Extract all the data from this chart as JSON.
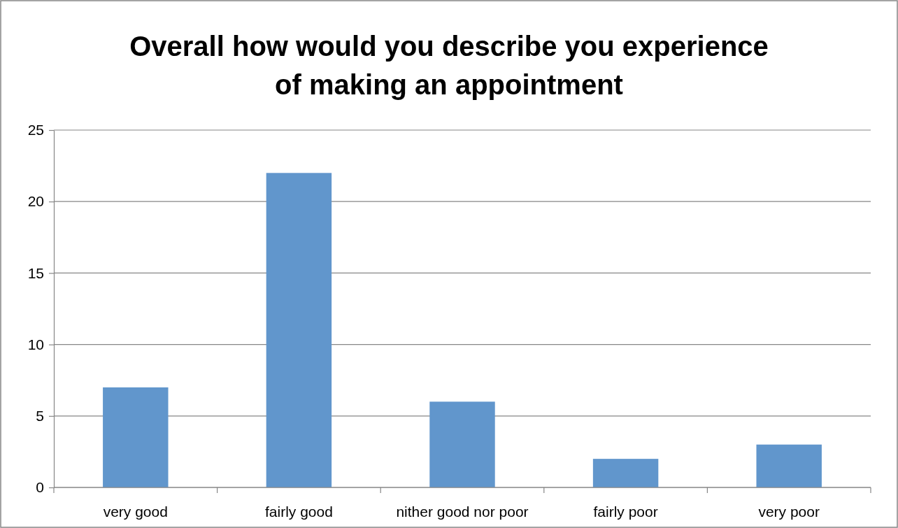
{
  "chart_data": {
    "type": "bar",
    "title": "Overall how would you describe you experience of making an appointment",
    "categories": [
      "very good",
      "fairly good",
      "nither good nor poor",
      "fairly poor",
      "very poor"
    ],
    "values": [
      7,
      22,
      6,
      2,
      3
    ],
    "color": "#6196cc",
    "ylim": [
      0,
      25
    ],
    "yticks": [
      0,
      5,
      10,
      15,
      20,
      25
    ],
    "grid": "y",
    "legend": false
  }
}
